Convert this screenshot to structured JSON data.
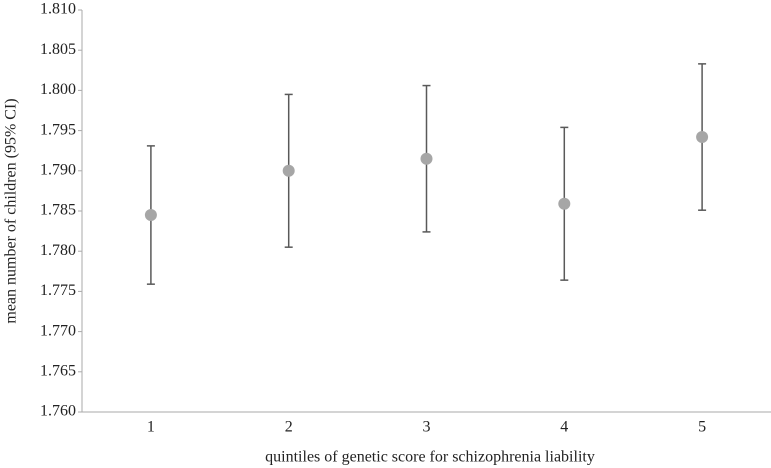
{
  "chart_data": {
    "type": "errorbar",
    "x_label": "quintiles of genetic score for schizophrenia liability",
    "y_label": "mean number of children (95% CI)",
    "categories": [
      "1",
      "2",
      "3",
      "4",
      "5"
    ],
    "values": [
      1.7845,
      1.79,
      1.7915,
      1.7859,
      1.7942
    ],
    "errors": [
      0.0086,
      0.0095,
      0.0091,
      0.0095,
      0.0091
    ],
    "color": "#a6a6a6",
    "error_color": "#595959",
    "ylim": [
      1.76,
      1.81
    ],
    "yticks": [
      {
        "value": 1.76,
        "label": "1.760"
      },
      1.765,
      {
        "value": 1.77,
        "label": "1.770"
      },
      1.775,
      {
        "value": 1.78,
        "label": "1.780"
      },
      1.785,
      {
        "value": 1.79,
        "label": "1.790"
      },
      1.795,
      {
        "value": 1.8,
        "label": "1.800"
      },
      1.805,
      {
        "value": 1.81,
        "label": "1.810"
      }
    ],
    "grid": false
  }
}
